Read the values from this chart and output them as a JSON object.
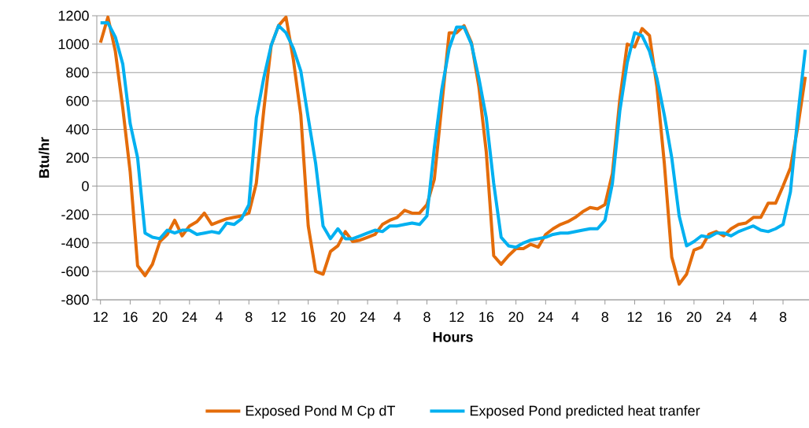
{
  "chart_data": {
    "type": "line",
    "xlabel": "Hours",
    "ylabel": "Btu/hr",
    "categories": [
      "12",
      null,
      null,
      null,
      "16",
      null,
      null,
      null,
      "20",
      null,
      null,
      null,
      "24",
      null,
      null,
      null,
      "4",
      null,
      null,
      null,
      "8",
      null,
      null,
      null,
      "12",
      null,
      null,
      null,
      "16",
      null,
      null,
      null,
      "20",
      null,
      null,
      null,
      "24",
      null,
      null,
      null,
      "4",
      null,
      null,
      null,
      "8",
      null,
      null,
      null,
      "12",
      null,
      null,
      null,
      "16",
      null,
      null,
      null,
      "20",
      null,
      null,
      null,
      "24",
      null,
      null,
      null,
      "4",
      null,
      null,
      null,
      "8",
      null,
      null,
      null,
      "12",
      null,
      null,
      null,
      "16",
      null,
      null,
      null,
      "20",
      null,
      null,
      null,
      "24",
      null,
      null,
      null,
      "4",
      null,
      null,
      null,
      "8",
      null,
      null,
      null
    ],
    "series": [
      {
        "name": "Exposed Pond M Cp dT",
        "color": "#e46c0a",
        "values": [
          1010,
          1190,
          950,
          550,
          100,
          -560,
          -630,
          -550,
          -390,
          -340,
          -240,
          -350,
          -280,
          -250,
          -190,
          -270,
          -250,
          -230,
          -220,
          -210,
          -190,
          20,
          530,
          990,
          1130,
          1190,
          890,
          500,
          -280,
          -600,
          -620,
          -460,
          -420,
          -320,
          -390,
          -380,
          -360,
          -340,
          -270,
          -240,
          -220,
          -170,
          -190,
          -190,
          -130,
          50,
          570,
          1080,
          1080,
          1130,
          1010,
          700,
          240,
          -490,
          -550,
          -490,
          -440,
          -440,
          -410,
          -430,
          -340,
          -300,
          -270,
          -250,
          -220,
          -180,
          -150,
          -160,
          -130,
          90,
          610,
          1000,
          980,
          1110,
          1060,
          700,
          160,
          -500,
          -690,
          -620,
          -450,
          -430,
          -340,
          -320,
          -350,
          -300,
          -270,
          -260,
          -220,
          -220,
          -120,
          -120,
          0,
          130,
          420,
          770
        ]
      },
      {
        "name": "Exposed Pond predicted heat tranfer",
        "color": "#00b0f0",
        "values": [
          1150,
          1150,
          1050,
          860,
          440,
          200,
          -330,
          -360,
          -370,
          -310,
          -330,
          -310,
          -310,
          -340,
          -330,
          -320,
          -330,
          -260,
          -270,
          -230,
          -130,
          480,
          760,
          990,
          1130,
          1080,
          970,
          810,
          480,
          160,
          -280,
          -370,
          -300,
          -370,
          -370,
          -350,
          -330,
          -310,
          -320,
          -280,
          -280,
          -270,
          -260,
          -270,
          -210,
          270,
          680,
          970,
          1120,
          1120,
          1000,
          760,
          480,
          20,
          -360,
          -420,
          -430,
          -400,
          -380,
          -370,
          -360,
          -340,
          -330,
          -330,
          -320,
          -310,
          -300,
          -300,
          -240,
          20,
          530,
          870,
          1080,
          1060,
          950,
          760,
          500,
          200,
          -210,
          -420,
          -390,
          -350,
          -360,
          -330,
          -330,
          -350,
          -320,
          -300,
          -280,
          -310,
          -320,
          -300,
          -270,
          -40,
          500,
          960
        ]
      }
    ],
    "ylim": [
      -800,
      1200
    ],
    "yticks": [
      -800,
      -600,
      -400,
      -200,
      0,
      200,
      400,
      600,
      800,
      1000,
      1200
    ],
    "grid": "y",
    "legend": "bottom",
    "marker": "none",
    "line_style": "solid"
  }
}
